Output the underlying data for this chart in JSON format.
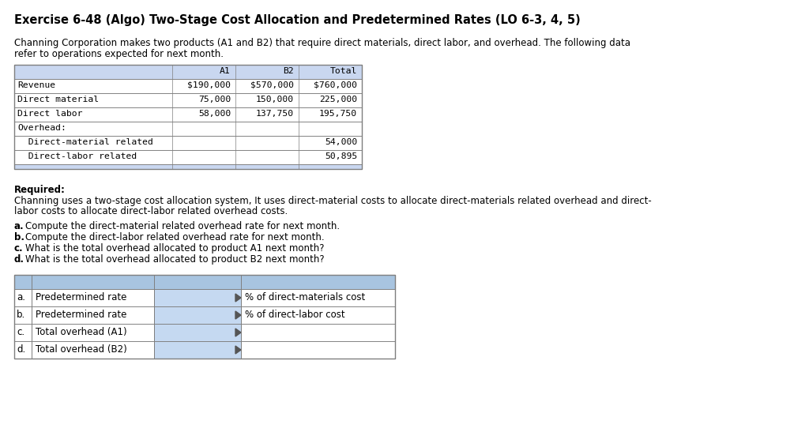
{
  "title": "Exercise 6-48 (Algo) Two-Stage Cost Allocation and Predetermined Rates (LO 6-3, 4, 5)",
  "intro_line1": "Channing Corporation makes two products (A1 and B2) that require direct materials, direct labor, and overhead. The following data",
  "intro_line2": "refer to operations expected for next month.",
  "table1_headers": [
    "A1",
    "B2",
    "Total"
  ],
  "table1_rows": [
    [
      "Revenue",
      "$190,000",
      "$570,000",
      "$760,000"
    ],
    [
      "Direct material",
      "75,000",
      "150,000",
      "225,000"
    ],
    [
      "Direct labor",
      "58,000",
      "137,750",
      "195,750"
    ],
    [
      "Overhead:",
      "",
      "",
      ""
    ],
    [
      "  Direct-material related",
      "",
      "",
      "54,000"
    ],
    [
      "  Direct-labor related",
      "",
      "",
      "50,895"
    ]
  ],
  "required_label": "Required:",
  "required_text_line1": "Channing uses a two-stage cost allocation system, It uses direct-material costs to allocate direct-materials related overhead and direct-",
  "required_text_line2": "labor costs to allocate direct-labor related overhead costs.",
  "questions": [
    [
      "a.",
      "Compute the direct-material related overhead rate for next month."
    ],
    [
      "b.",
      "Compute the direct-labor related overhead rate for next month."
    ],
    [
      "c.",
      "What is the total overhead allocated to product A1 next month?"
    ],
    [
      "d.",
      "What is the total overhead allocated to product B2 next month?"
    ]
  ],
  "answer_rows": [
    [
      "a.",
      "Predetermined rate",
      "% of direct-materials cost"
    ],
    [
      "b.",
      "Predetermined rate",
      "% of direct-labor cost"
    ],
    [
      "c.",
      "Total overhead (A1)",
      ""
    ],
    [
      "d.",
      "Total overhead (B2)",
      ""
    ]
  ],
  "bg_color": "#ffffff",
  "table_header_bg": "#c9d7f0",
  "answer_header_bg": "#a8c4e0",
  "answer_input_bg": "#c5d9f1",
  "border_color": "#7f7f7f",
  "title_fontsize": 10.5,
  "body_fontsize": 8.5,
  "mono_fontsize": 8.2,
  "small_fontsize": 8.5
}
